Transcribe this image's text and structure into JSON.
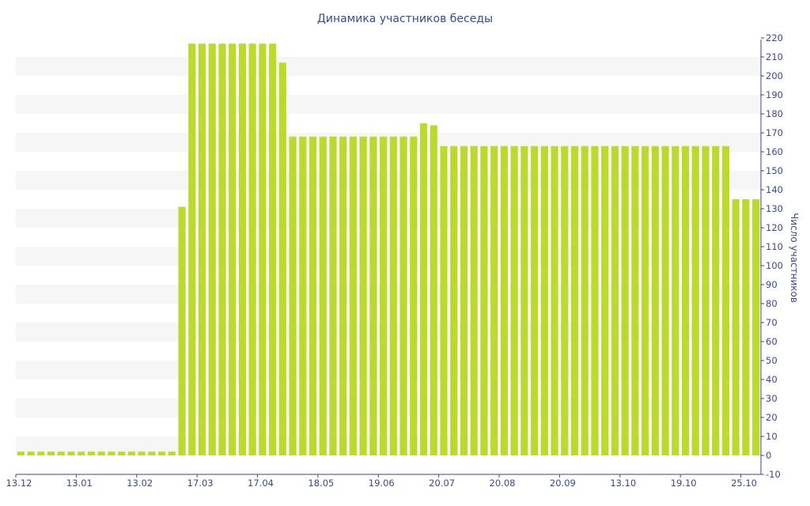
{
  "chart_data": {
    "type": "bar",
    "title": "Динамика участников беседы",
    "xlabel": "",
    "ylabel": "Число участников",
    "ylim": [
      -10,
      220
    ],
    "y_ticks": [
      -10,
      0,
      10,
      20,
      30,
      40,
      50,
      60,
      70,
      80,
      90,
      100,
      110,
      120,
      130,
      140,
      150,
      160,
      170,
      180,
      190,
      200,
      210,
      220
    ],
    "y_axis_position": "right",
    "grid": "alternating horizontal bands",
    "x_tick_labels": [
      {
        "label": "13.12",
        "index": 0
      },
      {
        "label": "13.01",
        "index": 6
      },
      {
        "label": "13.02",
        "index": 12
      },
      {
        "label": "17.03",
        "index": 18
      },
      {
        "label": "17.04",
        "index": 24
      },
      {
        "label": "18.05",
        "index": 30
      },
      {
        "label": "19.06",
        "index": 36
      },
      {
        "label": "20.07",
        "index": 42
      },
      {
        "label": "20.08",
        "index": 48
      },
      {
        "label": "20.09",
        "index": 54
      },
      {
        "label": "13.10",
        "index": 60
      },
      {
        "label": "19.10",
        "index": 66
      },
      {
        "label": "25.10",
        "index": 72
      }
    ],
    "values": [
      2,
      2,
      2,
      2,
      2,
      2,
      2,
      2,
      2,
      2,
      2,
      2,
      2,
      2,
      2,
      2,
      131,
      217,
      217,
      217,
      217,
      217,
      217,
      217,
      217,
      217,
      207,
      168,
      168,
      168,
      168,
      168,
      168,
      168,
      168,
      168,
      168,
      168,
      168,
      168,
      175,
      174,
      163,
      163,
      163,
      163,
      163,
      163,
      163,
      163,
      163,
      163,
      163,
      163,
      163,
      163,
      163,
      163,
      163,
      163,
      163,
      163,
      163,
      163,
      163,
      163,
      163,
      163,
      163,
      163,
      163,
      135,
      135,
      135
    ],
    "colors": {
      "bar": "#bada2e",
      "band": "#f6f6f6",
      "axis": "#3a4a8c",
      "text": "#3a4a8c"
    }
  }
}
